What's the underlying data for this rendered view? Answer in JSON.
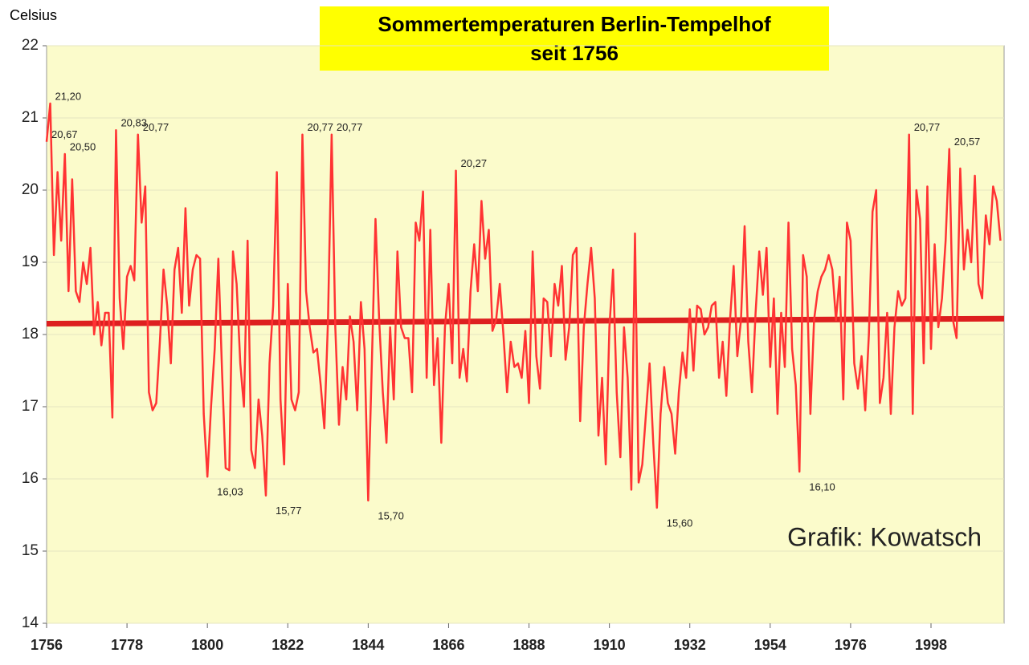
{
  "chart_data": {
    "type": "line",
    "title": [
      "Sommertemperaturen Berlin-Tempelhof",
      "seit 1756"
    ],
    "y_label": "Celsius",
    "credit": "Grafik: Kowatsch",
    "xlim": [
      1756,
      2018
    ],
    "ylim": [
      14,
      22
    ],
    "xticks": [
      1756,
      1778,
      1800,
      1822,
      1844,
      1866,
      1888,
      1910,
      1932,
      1954,
      1976,
      1998
    ],
    "yticks": [
      14,
      15,
      16,
      17,
      18,
      19,
      20,
      21,
      22
    ],
    "grid": true,
    "x": [
      1756,
      1757,
      1758,
      1759,
      1760,
      1761,
      1762,
      1763,
      1764,
      1765,
      1766,
      1767,
      1768,
      1769,
      1770,
      1771,
      1772,
      1773,
      1774,
      1775,
      1776,
      1777,
      1778,
      1779,
      1780,
      1781,
      1782,
      1783,
      1784,
      1785,
      1786,
      1787,
      1788,
      1789,
      1790,
      1791,
      1792,
      1793,
      1794,
      1795,
      1796,
      1797,
      1798,
      1799,
      1800,
      1801,
      1802,
      1803,
      1804,
      1805,
      1806,
      1807,
      1808,
      1809,
      1810,
      1811,
      1812,
      1813,
      1814,
      1815,
      1816,
      1817,
      1818,
      1819,
      1820,
      1821,
      1822,
      1823,
      1824,
      1825,
      1826,
      1827,
      1828,
      1829,
      1830,
      1831,
      1832,
      1833,
      1834,
      1835,
      1836,
      1837,
      1838,
      1839,
      1840,
      1841,
      1842,
      1843,
      1844,
      1845,
      1846,
      1847,
      1848,
      1849,
      1850,
      1851,
      1852,
      1853,
      1854,
      1855,
      1856,
      1857,
      1858,
      1859,
      1860,
      1861,
      1862,
      1863,
      1864,
      1865,
      1866,
      1867,
      1868,
      1869,
      1870,
      1871,
      1872,
      1873,
      1874,
      1875,
      1876,
      1877,
      1878,
      1879,
      1880,
      1881,
      1882,
      1883,
      1884,
      1885,
      1886,
      1887,
      1888,
      1889,
      1890,
      1891,
      1892,
      1893,
      1894,
      1895,
      1896,
      1897,
      1898,
      1899,
      1900,
      1901,
      1902,
      1903,
      1904,
      1905,
      1906,
      1907,
      1908,
      1909,
      1910,
      1911,
      1912,
      1913,
      1914,
      1915,
      1916,
      1917,
      1918,
      1919,
      1920,
      1921,
      1922,
      1923,
      1924,
      1925,
      1926,
      1927,
      1928,
      1929,
      1930,
      1931,
      1932,
      1933,
      1934,
      1935,
      1936,
      1937,
      1938,
      1939,
      1940,
      1941,
      1942,
      1943,
      1944,
      1945,
      1946,
      1947,
      1948,
      1949,
      1950,
      1951,
      1952,
      1953,
      1954,
      1955,
      1956,
      1957,
      1958,
      1959,
      1960,
      1961,
      1962,
      1963,
      1964,
      1965,
      1966,
      1967,
      1968,
      1969,
      1970,
      1971,
      1972,
      1973,
      1974,
      1975,
      1976,
      1977,
      1978,
      1979,
      1980,
      1981,
      1982,
      1983,
      1984,
      1985,
      1986,
      1987,
      1988,
      1989,
      1990,
      1991,
      1992,
      1993,
      1994,
      1995,
      1996,
      1997,
      1998,
      1999,
      2000,
      2001,
      2002,
      2003,
      2004,
      2005,
      2006,
      2007,
      2008,
      2009,
      2010,
      2011,
      2012,
      2013,
      2014,
      2015,
      2016,
      2017
    ],
    "series": [
      {
        "color": "#ff3333",
        "values": [
          20.67,
          21.2,
          19.1,
          20.25,
          19.3,
          20.5,
          18.6,
          20.15,
          18.6,
          18.45,
          19.0,
          18.7,
          19.2,
          18.0,
          18.45,
          17.85,
          18.3,
          18.3,
          16.85,
          20.83,
          18.5,
          17.8,
          18.8,
          18.95,
          18.75,
          20.77,
          19.55,
          20.05,
          17.2,
          16.95,
          17.05,
          17.9,
          18.9,
          18.4,
          17.6,
          18.9,
          19.2,
          18.3,
          19.75,
          18.4,
          18.9,
          19.1,
          19.05,
          16.9,
          16.03,
          17.0,
          17.8,
          19.05,
          17.5,
          16.15,
          16.12,
          19.15,
          18.7,
          17.6,
          17.0,
          19.3,
          16.4,
          16.15,
          17.1,
          16.6,
          15.77,
          17.6,
          18.4,
          20.25,
          17.1,
          16.2,
          18.7,
          17.1,
          16.95,
          17.2,
          20.77,
          18.6,
          18.1,
          17.75,
          17.8,
          17.3,
          16.7,
          18.2,
          20.77,
          18.1,
          16.75,
          17.55,
          17.1,
          18.25,
          17.9,
          16.95,
          18.45,
          17.8,
          15.7,
          17.6,
          19.6,
          18.2,
          17.2,
          16.5,
          18.1,
          17.1,
          19.15,
          18.1,
          17.95,
          17.95,
          17.2,
          19.55,
          19.3,
          19.98,
          17.4,
          19.45,
          17.3,
          17.95,
          16.5,
          18.1,
          18.7,
          17.6,
          20.27,
          17.4,
          17.8,
          17.35,
          18.6,
          19.25,
          18.6,
          19.85,
          19.05,
          19.45,
          18.05,
          18.2,
          18.7,
          18.0,
          17.2,
          17.9,
          17.55,
          17.6,
          17.4,
          18.05,
          17.05,
          19.15,
          17.7,
          17.25,
          18.5,
          18.45,
          17.7,
          18.7,
          18.4,
          18.95,
          17.65,
          18.1,
          19.1,
          19.2,
          16.8,
          18.1,
          18.7,
          19.2,
          18.5,
          16.6,
          17.4,
          16.2,
          18.1,
          18.9,
          17.2,
          16.3,
          18.1,
          17.4,
          15.85,
          19.4,
          15.95,
          16.2,
          16.9,
          17.6,
          16.5,
          15.6,
          16.9,
          17.55,
          17.05,
          16.9,
          16.35,
          17.2,
          17.75,
          17.4,
          18.35,
          17.5,
          18.4,
          18.35,
          18.0,
          18.1,
          18.4,
          18.45,
          17.4,
          17.9,
          17.15,
          18.2,
          18.95,
          17.7,
          18.2,
          19.5,
          17.9,
          17.2,
          18.3,
          19.15,
          18.55,
          19.2,
          17.55,
          18.5,
          16.9,
          18.3,
          17.55,
          19.55,
          17.8,
          17.3,
          16.1,
          19.1,
          18.8,
          16.9,
          18.2,
          18.6,
          18.8,
          18.9,
          19.1,
          18.9,
          18.2,
          18.8,
          17.1,
          19.55,
          19.3,
          17.6,
          17.25,
          17.7,
          16.95,
          18.0,
          19.7,
          20.0,
          17.05,
          17.4,
          18.3,
          16.9,
          18.1,
          18.6,
          18.4,
          18.5,
          20.77,
          16.9,
          20.0,
          19.6,
          17.6,
          20.05,
          17.8,
          19.25,
          18.1,
          18.5,
          19.3,
          20.57,
          18.2,
          17.95,
          20.3,
          18.9,
          19.45,
          19.0,
          20.2,
          18.7,
          18.5,
          19.65,
          19.25,
          20.05,
          19.85,
          19.3
        ]
      }
    ],
    "trend": {
      "color": "#dd1f1f",
      "x": [
        1756,
        2018
      ],
      "values": [
        18.15,
        18.22
      ]
    },
    "annotations": [
      {
        "x": 1757,
        "value": 21.2,
        "label": "21,20"
      },
      {
        "x": 1756,
        "value": 20.67,
        "label": "20,67"
      },
      {
        "x": 1761,
        "value": 20.5,
        "label": "20,50"
      },
      {
        "x": 1775,
        "value": 20.83,
        "label": "20,83"
      },
      {
        "x": 1781,
        "value": 20.77,
        "label": "20,77"
      },
      {
        "x": 1800,
        "value": 16.03,
        "label": "16,03"
      },
      {
        "x": 1816,
        "value": 15.77,
        "label": "15,77"
      },
      {
        "x": 1826,
        "value": 20.77,
        "label": "20,77"
      },
      {
        "x": 1834,
        "value": 20.77,
        "label": "20,77"
      },
      {
        "x": 1844,
        "value": 15.7,
        "label": "15,70"
      },
      {
        "x": 1868,
        "value": 20.27,
        "label": "20,27"
      },
      {
        "x": 1923,
        "value": 15.6,
        "label": "15,60"
      },
      {
        "x": 1962,
        "value": 16.1,
        "label": "16,10"
      },
      {
        "x": 1992,
        "value": 20.77,
        "label": "20,77"
      },
      {
        "x": 2003,
        "value": 20.57,
        "label": "20,57"
      }
    ]
  }
}
